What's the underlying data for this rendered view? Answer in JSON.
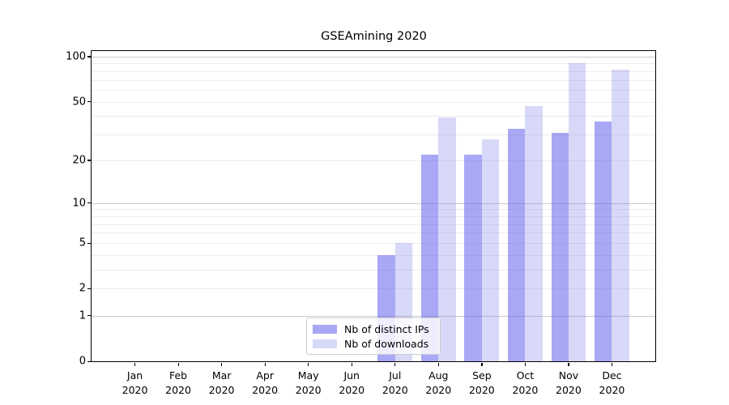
{
  "chart_data": {
    "type": "bar",
    "title": "GSEAmining 2020",
    "x_tick_months": [
      "Jan",
      "Feb",
      "Mar",
      "Apr",
      "May",
      "Jun",
      "Jul",
      "Aug",
      "Sep",
      "Oct",
      "Nov",
      "Dec"
    ],
    "x_tick_year": "2020",
    "y_tick_labels": [
      "100",
      "50",
      "20",
      "10",
      "5",
      "2",
      "1",
      "0"
    ],
    "y_tick_values": [
      100,
      50,
      20,
      10,
      5,
      2,
      1,
      0
    ],
    "yscale": "log1p",
    "y_max": 109,
    "grid": {
      "major_values": [
        1,
        10,
        100
      ],
      "minor_values": [
        2,
        3,
        4,
        5,
        6,
        7,
        8,
        9,
        20,
        30,
        40,
        50,
        60,
        70,
        80,
        90
      ],
      "major_color": "#c9c9c9",
      "minor_color": "#ececec"
    },
    "series": [
      {
        "name": "Nb of distinct IPs",
        "key": "distinct-ips",
        "fill": "rgba(97,97,237,0.55)",
        "legend_color": "#a8a8f4",
        "values": [
          0,
          0,
          0,
          0,
          0,
          0,
          4,
          22,
          22,
          33,
          31,
          37
        ]
      },
      {
        "name": "Nb of downloads",
        "key": "downloads",
        "fill": "rgba(99,99,227,0.25)",
        "legend_color": "#d8d8f8",
        "values": [
          0,
          0,
          0,
          0,
          0,
          0,
          5,
          39,
          28,
          47,
          91,
          82
        ]
      }
    ],
    "legend_position": "lower center"
  }
}
